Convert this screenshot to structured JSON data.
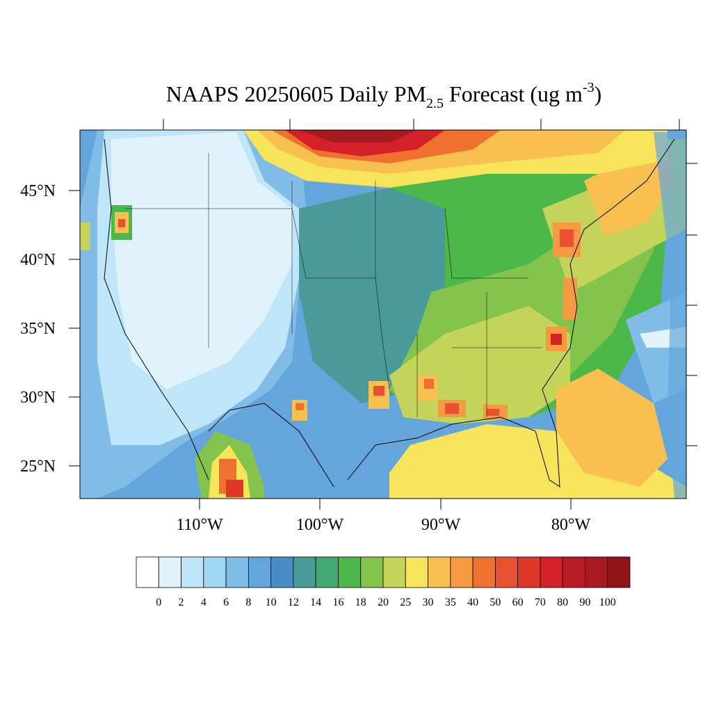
{
  "title": {
    "main": "NAAPS 20250605 Daily PM",
    "subscript": "2.5",
    "after": " Forecast (ug m",
    "superscript": "-3",
    "close": ")"
  },
  "map": {
    "lat_labels": [
      "45°N",
      "40°N",
      "35°N",
      "30°N",
      "25°N"
    ],
    "lon_labels": [
      "110°W",
      "100°W",
      "90°W",
      "80°W"
    ]
  },
  "colorbar": {
    "levels": [
      0,
      2,
      4,
      6,
      8,
      10,
      12,
      14,
      16,
      18,
      20,
      25,
      30,
      35,
      40,
      50,
      60,
      70,
      80,
      90,
      100
    ],
    "colors": [
      "#ffffff",
      "#e0f3fc",
      "#bfe6f8",
      "#a0d8f4",
      "#80bce6",
      "#64a6dc",
      "#4a8cc8",
      "#4a9a9a",
      "#44a872",
      "#4cb84a",
      "#84c44c",
      "#c4d45a",
      "#f8e45a",
      "#f8c050",
      "#f49a40",
      "#f07030",
      "#e85030",
      "#e03828",
      "#d42028",
      "#b81c24",
      "#a81820",
      "#901418"
    ]
  }
}
